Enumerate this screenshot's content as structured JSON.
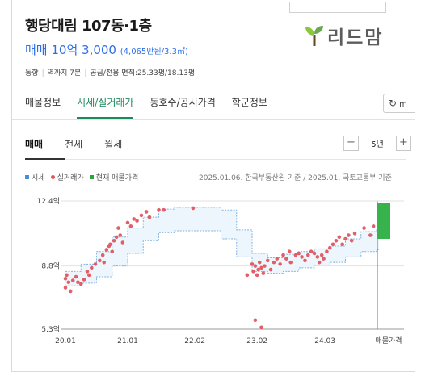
{
  "listing": {
    "title": "행당대림 107동·1층",
    "price": "매매 10억 3,000",
    "price_per_area": "(4,065만원/3.3㎡)",
    "direction": "동향",
    "station": "역까지 7분",
    "area": "공급/전용 면적:25.33평/18.13평"
  },
  "logo": {
    "text": "리드맘",
    "icon": "sprout-icon"
  },
  "tabs": [
    {
      "label": "매물정보",
      "active": false
    },
    {
      "label": "시세/실거래가",
      "active": true
    },
    {
      "label": "동호수/공시가격",
      "active": false
    },
    {
      "label": "학군정보",
      "active": false
    }
  ],
  "refresh": {
    "icon": "refresh-icon",
    "label": "m"
  },
  "subtabs": [
    {
      "label": "매매",
      "active": true
    },
    {
      "label": "전세",
      "active": false
    },
    {
      "label": "월세",
      "active": false
    }
  ],
  "period": {
    "label": "5년",
    "minus": "−",
    "plus": "+"
  },
  "legend": [
    {
      "label": "시세",
      "color": "#4a8fd6"
    },
    {
      "label": "실거래가",
      "color": "#e0535b"
    },
    {
      "label": "현재 매물가격",
      "color": "#2aa63b"
    }
  ],
  "source_note": "2025.01.06. 한국부동산원 기준 / 2025.01. 국토교통부 기준",
  "chart_data": {
    "type": "scatter",
    "y_unit": "억",
    "ylim": [
      5.3,
      12.4
    ],
    "yticks": [
      "12.4억",
      "8.8억",
      "5.3억"
    ],
    "ytick_values": [
      12.4,
      8.8,
      5.3
    ],
    "xticks": [
      "20.01",
      "21.01",
      "22.02",
      "23.02",
      "24.03",
      "매물가격"
    ],
    "xtick_values": [
      2020.0,
      2021.0,
      2022.08,
      2023.08,
      2024.17
    ],
    "band": {
      "name": "시세",
      "x": [
        2020.0,
        2020.25,
        2020.5,
        2020.75,
        2021.0,
        2021.25,
        2021.5,
        2021.75,
        2022.0,
        2022.25,
        2022.5,
        2022.75,
        2023.0,
        2023.25,
        2023.5,
        2023.75,
        2024.0,
        2024.25,
        2024.5,
        2024.75,
        2025.0
      ],
      "upper": [
        8.5,
        8.9,
        9.6,
        10.4,
        10.9,
        11.5,
        11.95,
        12.05,
        12.05,
        12.05,
        11.9,
        10.8,
        9.5,
        9.25,
        9.45,
        9.6,
        9.75,
        9.9,
        10.3,
        10.7,
        10.8
      ],
      "lower": [
        7.7,
        7.85,
        8.2,
        8.8,
        9.5,
        10.2,
        10.65,
        10.75,
        10.75,
        10.75,
        10.3,
        9.3,
        8.5,
        8.4,
        8.5,
        8.7,
        8.85,
        9.0,
        9.3,
        9.6,
        9.7
      ]
    },
    "transactions": {
      "name": "실거래가",
      "points": [
        [
          2020.0,
          7.6
        ],
        [
          2020.0,
          8.1
        ],
        [
          2020.02,
          8.3
        ],
        [
          2020.05,
          7.9
        ],
        [
          2020.08,
          7.4
        ],
        [
          2020.12,
          8.0
        ],
        [
          2020.17,
          8.2
        ],
        [
          2020.2,
          7.9
        ],
        [
          2020.25,
          7.8
        ],
        [
          2020.3,
          8.05
        ],
        [
          2020.35,
          8.5
        ],
        [
          2020.38,
          8.3
        ],
        [
          2020.42,
          8.7
        ],
        [
          2020.48,
          8.9
        ],
        [
          2020.55,
          9.1
        ],
        [
          2020.6,
          9.4
        ],
        [
          2020.62,
          9.0
        ],
        [
          2020.66,
          9.7
        ],
        [
          2020.7,
          9.9
        ],
        [
          2020.72,
          10.0
        ],
        [
          2020.75,
          9.6
        ],
        [
          2020.78,
          10.2
        ],
        [
          2020.82,
          10.4
        ],
        [
          2020.85,
          10.9
        ],
        [
          2020.88,
          10.5
        ],
        [
          2020.92,
          10.1
        ],
        [
          2021.0,
          11.2
        ],
        [
          2021.05,
          11.0
        ],
        [
          2021.1,
          11.4
        ],
        [
          2021.15,
          11.3
        ],
        [
          2021.22,
          11.6
        ],
        [
          2021.3,
          11.8
        ],
        [
          2021.35,
          11.5
        ],
        [
          2021.5,
          11.9
        ],
        [
          2021.58,
          11.9
        ],
        [
          2022.05,
          12.0
        ],
        [
          2023.0,
          8.9
        ],
        [
          2023.02,
          8.5
        ],
        [
          2023.05,
          8.8
        ],
        [
          2023.08,
          8.3
        ],
        [
          2023.1,
          8.6
        ],
        [
          2023.12,
          9.0
        ],
        [
          2023.15,
          8.7
        ],
        [
          2023.18,
          8.4
        ],
        [
          2023.2,
          8.8
        ],
        [
          2023.25,
          9.1
        ],
        [
          2023.3,
          8.6
        ],
        [
          2023.35,
          9.0
        ],
        [
          2023.4,
          9.2
        ],
        [
          2023.45,
          8.9
        ],
        [
          2023.5,
          9.4
        ],
        [
          2023.55,
          9.2
        ],
        [
          2023.6,
          9.6
        ],
        [
          2023.62,
          9.0
        ],
        [
          2023.7,
          9.4
        ],
        [
          2023.75,
          9.5
        ],
        [
          2023.8,
          9.3
        ],
        [
          2023.85,
          9.1
        ],
        [
          2023.9,
          9.4
        ],
        [
          2023.95,
          9.6
        ],
        [
          2024.0,
          9.5
        ],
        [
          2024.05,
          9.3
        ],
        [
          2024.08,
          9.0
        ],
        [
          2024.12,
          9.4
        ],
        [
          2024.15,
          9.2
        ],
        [
          2024.2,
          9.6
        ],
        [
          2024.25,
          9.8
        ],
        [
          2024.3,
          10.0
        ],
        [
          2024.35,
          10.2
        ],
        [
          2024.4,
          10.4
        ],
        [
          2024.45,
          10.0
        ],
        [
          2024.5,
          10.3
        ],
        [
          2024.55,
          10.5
        ],
        [
          2024.6,
          10.2
        ],
        [
          2024.65,
          10.6
        ],
        [
          2024.8,
          10.9
        ],
        [
          2024.9,
          10.5
        ],
        [
          2024.95,
          11.0
        ],
        [
          2022.92,
          8.3
        ],
        [
          2023.05,
          5.8
        ],
        [
          2023.15,
          5.4
        ]
      ]
    },
    "listing_price": {
      "name": "현재 매물가격",
      "low": 10.3,
      "high": 12.3
    }
  }
}
